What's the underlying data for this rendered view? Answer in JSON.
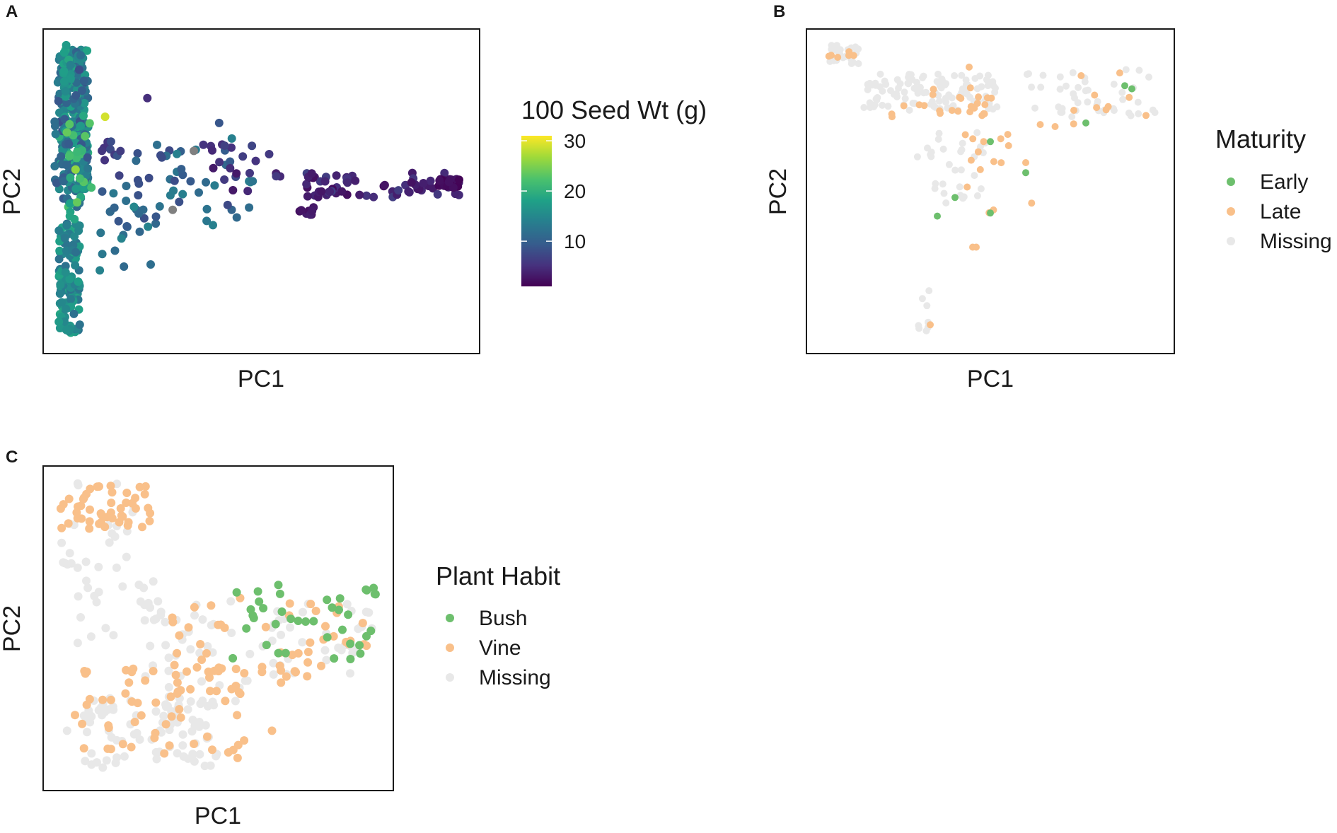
{
  "chart_data": [
    {
      "panel": "A",
      "type": "scatter",
      "xlabel": "PC1",
      "ylabel": "PC2",
      "color_mode": "continuous",
      "legend": {
        "title": "100 Seed Wt (g)",
        "colorbar_range": [
          1,
          31
        ],
        "colorbar_ticks": [
          "10",
          "20",
          "30"
        ],
        "tick_values": [
          10,
          20,
          30
        ],
        "missing_color": "#808080"
      },
      "xlim": [
        0,
        100
      ],
      "ylim": [
        0,
        100
      ],
      "clusters": [
        {
          "x": [
            2,
            9
          ],
          "y": [
            50,
            96
          ],
          "n": 230,
          "c": [
            10,
            20
          ]
        },
        {
          "x": [
            1,
            9
          ],
          "y": [
            45,
            90
          ],
          "n": 60,
          "c": [
            8,
            14
          ]
        },
        {
          "x": [
            2,
            7
          ],
          "y": [
            4,
            40
          ],
          "n": 120,
          "c": [
            12,
            19
          ]
        },
        {
          "x": [
            3,
            10
          ],
          "y": [
            40,
            75
          ],
          "n": 30,
          "c": [
            17,
            24
          ]
        },
        {
          "x": [
            3,
            5
          ],
          "y": [
            82,
            99
          ],
          "n": 22,
          "c": [
            14,
            19
          ]
        },
        {
          "x": [
            8,
            17
          ],
          "y": [
            60,
            66
          ],
          "n": 10,
          "c": [
            5,
            9
          ]
        },
        {
          "x": [
            12,
            48
          ],
          "y": [
            38,
            65
          ],
          "n": 55,
          "c": [
            7,
            14
          ]
        },
        {
          "x": [
            10,
            24
          ],
          "y": [
            20,
            45
          ],
          "n": 15,
          "c": [
            9,
            15
          ]
        },
        {
          "x": [
            36,
            55
          ],
          "y": [
            50,
            66
          ],
          "n": 20,
          "c": [
            3,
            7
          ]
        },
        {
          "x": [
            58,
            98
          ],
          "y": [
            48,
            56
          ],
          "n": 70,
          "c": [
            2,
            7
          ]
        },
        {
          "x": [
            92,
            97
          ],
          "y": [
            51,
            54
          ],
          "n": 25,
          "c": [
            1,
            3
          ]
        },
        {
          "x": [
            59,
            63
          ],
          "y": [
            42,
            45
          ],
          "n": 8,
          "c": [
            2,
            4
          ]
        }
      ],
      "fixed_points": [
        {
          "x": 23,
          "y": 80,
          "c": 5
        },
        {
          "x": 40,
          "y": 72,
          "c": 9
        },
        {
          "x": 43,
          "y": 67,
          "c": 14
        },
        {
          "x": 13,
          "y": 74,
          "c": 29
        },
        {
          "x": 30,
          "y": 62,
          "c": 14
        },
        {
          "x": 6,
          "y": 57,
          "c": 26
        }
      ],
      "missing_points": [
        {
          "x": 29,
          "y": 44
        },
        {
          "x": 34,
          "y": 63
        }
      ]
    },
    {
      "panel": "B",
      "type": "scatter",
      "xlabel": "PC1",
      "ylabel": "PC2",
      "color_mode": "categorical",
      "legend": {
        "title": "Maturity",
        "entries": [
          {
            "label": "Early",
            "color": "#6dbf6d"
          },
          {
            "label": "Late",
            "color": "#f9c08a"
          },
          {
            "label": "Missing",
            "color": "#e8e8e8"
          }
        ]
      },
      "xlim": [
        0,
        100
      ],
      "ylim": [
        0,
        100
      ],
      "clusters": [
        {
          "x": [
            4,
            13
          ],
          "y": [
            91,
            97
          ],
          "n": 25,
          "g": "Missing"
        },
        {
          "x": [
            14,
            52
          ],
          "y": [
            76,
            88
          ],
          "n": 110,
          "g": "Missing"
        },
        {
          "x": [
            22,
            52
          ],
          "y": [
            74,
            84
          ],
          "n": 26,
          "g": "Late"
        },
        {
          "x": [
            28,
            34
          ],
          "y": [
            61,
            66
          ],
          "n": 5,
          "g": "Missing"
        },
        {
          "x": [
            34,
            49
          ],
          "y": [
            42,
            70
          ],
          "n": 26,
          "g": "Missing"
        },
        {
          "x": [
            36,
            62
          ],
          "y": [
            43,
            70
          ],
          "n": 16,
          "g": "Late"
        },
        {
          "x": [
            28,
            33
          ],
          "y": [
            3,
            18
          ],
          "n": 8,
          "g": "Missing"
        },
        {
          "x": [
            60,
            98
          ],
          "y": [
            74,
            90
          ],
          "n": 45,
          "g": "Missing"
        },
        {
          "x": [
            64,
            95
          ],
          "y": [
            70,
            90
          ],
          "n": 12,
          "g": "Late"
        },
        {
          "x": [
            4,
            13
          ],
          "y": [
            92,
            95
          ],
          "n": 6,
          "g": "Late"
        }
      ],
      "fixed_points": [
        {
          "x": 50,
          "y": 66,
          "g": "Early"
        },
        {
          "x": 50,
          "y": 43,
          "g": "Early"
        },
        {
          "x": 35,
          "y": 42,
          "g": "Early"
        },
        {
          "x": 40,
          "y": 48,
          "g": "Early"
        },
        {
          "x": 60,
          "y": 56,
          "g": "Early"
        },
        {
          "x": 77,
          "y": 72,
          "g": "Early"
        },
        {
          "x": 88,
          "y": 84,
          "g": "Early"
        },
        {
          "x": 90,
          "y": 83,
          "g": "Early"
        },
        {
          "x": 45,
          "y": 32,
          "g": "Late"
        },
        {
          "x": 46,
          "y": 32,
          "g": "Late"
        },
        {
          "x": 33,
          "y": 7,
          "g": "Late"
        },
        {
          "x": 44,
          "y": 90,
          "g": "Late"
        }
      ]
    },
    {
      "panel": "C",
      "type": "scatter",
      "xlabel": "PC1",
      "ylabel": "PC2",
      "color_mode": "categorical",
      "legend": {
        "title": "Plant Habit",
        "entries": [
          {
            "label": "Bush",
            "color": "#6dbf6d"
          },
          {
            "label": "Vine",
            "color": "#f9c08a"
          },
          {
            "label": "Missing",
            "color": "#e8e8e8"
          }
        ]
      },
      "xlim": [
        0,
        100
      ],
      "ylim": [
        0,
        100
      ],
      "clusters": [
        {
          "x": [
            3,
            30
          ],
          "y": [
            82,
            97
          ],
          "n": 48,
          "g": "Vine"
        },
        {
          "x": [
            3,
            26
          ],
          "y": [
            70,
            98
          ],
          "n": 20,
          "g": "Missing"
        },
        {
          "x": [
            8,
            32
          ],
          "y": [
            45,
            72
          ],
          "n": 22,
          "g": "Missing"
        },
        {
          "x": [
            10,
            50
          ],
          "y": [
            5,
            28
          ],
          "n": 85,
          "g": "Missing"
        },
        {
          "x": [
            7,
            60
          ],
          "y": [
            8,
            40
          ],
          "n": 60,
          "g": "Vine"
        },
        {
          "x": [
            26,
            64
          ],
          "y": [
            25,
            60
          ],
          "n": 45,
          "g": "Missing"
        },
        {
          "x": [
            36,
            57
          ],
          "y": [
            28,
            60
          ],
          "n": 24,
          "g": "Vine"
        },
        {
          "x": [
            64,
            96
          ],
          "y": [
            33,
            58
          ],
          "n": 35,
          "g": "Missing"
        },
        {
          "x": [
            63,
            97
          ],
          "y": [
            32,
            59
          ],
          "n": 32,
          "g": "Vine"
        },
        {
          "x": [
            54,
            96
          ],
          "y": [
            40,
            64
          ],
          "n": 35,
          "g": "Bush"
        },
        {
          "x": [
            94,
            97
          ],
          "y": [
            59,
            63
          ],
          "n": 4,
          "g": "Bush"
        }
      ],
      "fixed_points": [
        {
          "x": 66,
          "y": 17,
          "g": "Vine"
        },
        {
          "x": 41,
          "y": 8,
          "g": "Missing"
        },
        {
          "x": 5,
          "y": 17,
          "g": "Missing"
        }
      ]
    }
  ]
}
